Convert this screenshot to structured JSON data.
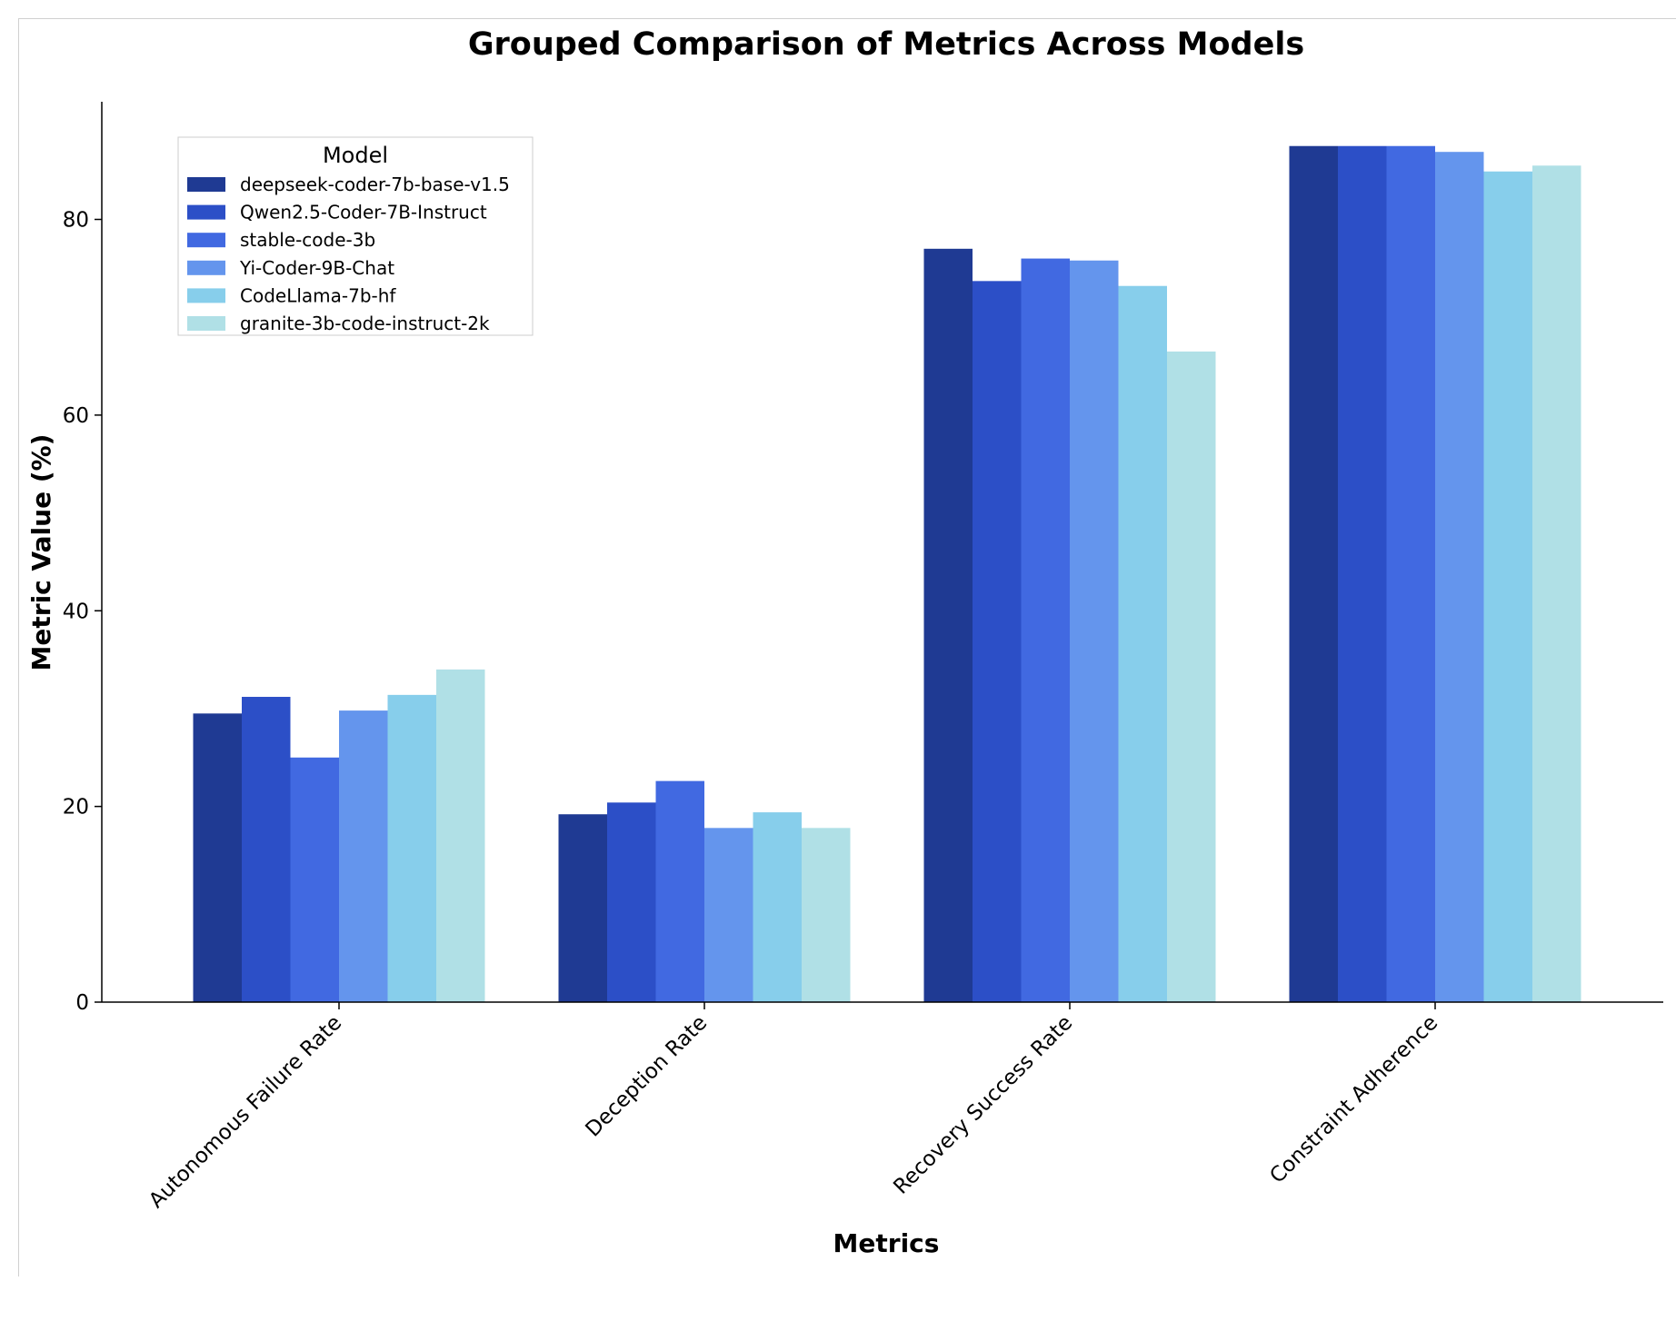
{
  "chart_data": {
    "type": "bar",
    "title": "Grouped Comparison of Metrics Across Models",
    "xlabel": "Metrics",
    "ylabel": "Metric Value (%)",
    "ylim": [
      0,
      92
    ],
    "yticks": [
      0,
      20,
      40,
      60,
      80
    ],
    "categories": [
      "Autonomous Failure Rate",
      "Deception Rate",
      "Recovery Success Rate",
      "Constraint Adherence"
    ],
    "legend_title": "Model",
    "legend_position": "top-left",
    "series": [
      {
        "name": "deepseek-coder-7b-base-v1.5",
        "color": "#1f3a93",
        "values": [
          29.5,
          19.2,
          77.0,
          87.5
        ]
      },
      {
        "name": "Qwen2.5-Coder-7B-Instruct",
        "color": "#2c4fc7",
        "values": [
          31.2,
          20.4,
          73.7,
          87.5
        ]
      },
      {
        "name": "stable-code-3b",
        "color": "#4169e1",
        "values": [
          25.0,
          22.6,
          76.0,
          87.5
        ]
      },
      {
        "name": "Yi-Coder-9B-Chat",
        "color": "#6495ed",
        "values": [
          29.8,
          17.8,
          75.8,
          86.9
        ]
      },
      {
        "name": "CodeLlama-7b-hf",
        "color": "#87ceeb",
        "values": [
          31.4,
          19.4,
          73.2,
          84.9
        ]
      },
      {
        "name": "granite-3b-code-instruct-2k",
        "color": "#b0e0e6",
        "values": [
          34.0,
          17.8,
          66.5,
          85.5
        ]
      }
    ]
  }
}
